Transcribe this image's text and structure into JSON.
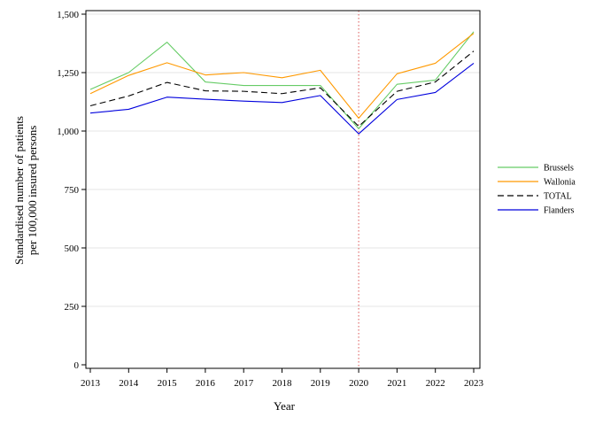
{
  "chart_data": {
    "type": "line",
    "xlabel": "Year",
    "ylabel_lines": [
      "Standardised number of patients",
      "per 100,000 insured persons"
    ],
    "x": [
      2013,
      2014,
      2015,
      2016,
      2017,
      2018,
      2019,
      2020,
      2021,
      2022,
      2023
    ],
    "x_tick_labels": [
      "2013",
      "2014",
      "2015",
      "2016",
      "2017",
      "2018",
      "2019",
      "2020",
      "2021",
      "2022",
      "2023"
    ],
    "xlim": [
      2013,
      2023
    ],
    "ylim": [
      0,
      1500
    ],
    "y_ticks": [
      0,
      250,
      500,
      750,
      1000,
      1250,
      1500
    ],
    "y_tick_labels": [
      "0",
      "250",
      "500",
      "750",
      "1,000",
      "1,250",
      "1,500"
    ],
    "grid": "horizontal",
    "reference_line": {
      "x": 2020,
      "color": "#e07070",
      "style": "dotted"
    },
    "legend_position": "right",
    "series": [
      {
        "name": "Brussels",
        "color": "#66cc66",
        "dash": "solid",
        "values": [
          1178,
          1250,
          1380,
          1210,
          1195,
          1195,
          1195,
          1010,
          1200,
          1218,
          1425
        ]
      },
      {
        "name": "Wallonia",
        "color": "#ff9900",
        "dash": "solid",
        "values": [
          1160,
          1238,
          1292,
          1240,
          1250,
          1228,
          1260,
          1055,
          1245,
          1290,
          1418
        ]
      },
      {
        "name": "TOTAL",
        "color": "#000000",
        "dash": "dashed",
        "values": [
          1108,
          1150,
          1208,
          1172,
          1170,
          1160,
          1185,
          1020,
          1170,
          1210,
          1342
        ]
      },
      {
        "name": "Flanders",
        "color": "#0000dd",
        "dash": "solid",
        "values": [
          1077,
          1093,
          1145,
          1136,
          1128,
          1122,
          1152,
          988,
          1135,
          1165,
          1290
        ]
      }
    ]
  }
}
